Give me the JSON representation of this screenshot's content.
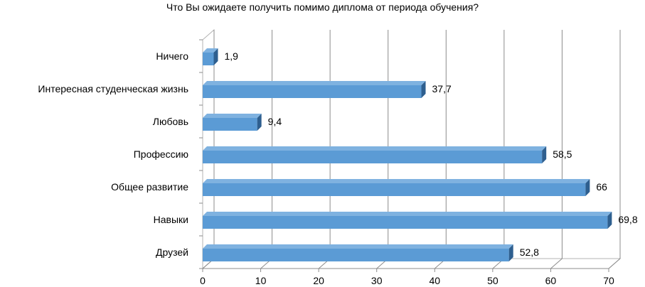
{
  "chart_data": {
    "type": "bar",
    "orientation": "horizontal",
    "title": "Что Вы ожидаете получить помимо диплома от периода обучения?",
    "categories": [
      "Ничего",
      "Интересная студенческая жизнь",
      "Любовь",
      "Профессию",
      "Общее развитие",
      "Навыки",
      "Друзей"
    ],
    "values": [
      1.9,
      37.7,
      9.4,
      58.5,
      66,
      69.8,
      52.8
    ],
    "value_labels": [
      "1,9",
      "37,7",
      "9,4",
      "58,5",
      "66",
      "69,8",
      "52,8"
    ],
    "x_ticks": [
      "0",
      "10",
      "20",
      "30",
      "40",
      "50",
      "60",
      "70"
    ],
    "xlim": [
      0,
      70
    ],
    "xlabel": "",
    "ylabel": "",
    "grid": true,
    "legend": "none",
    "bar_color": "#5b9bd5",
    "bar_side_color": "#2e5f8f",
    "bar_top_color": "#7fb2e0"
  }
}
